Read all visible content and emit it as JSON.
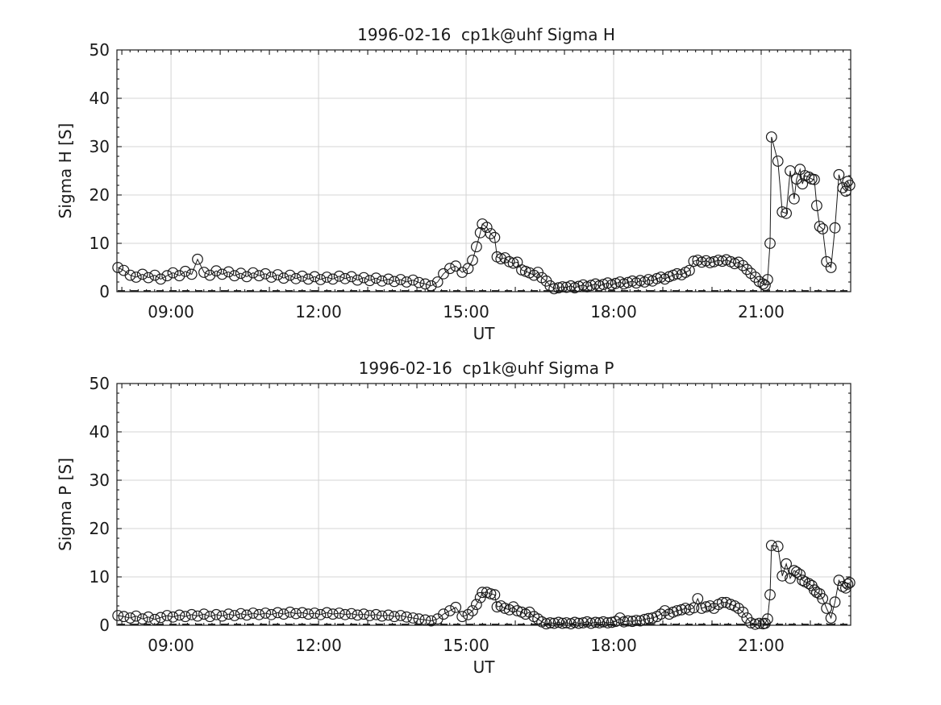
{
  "figure": {
    "background": "#ffffff"
  },
  "colors": {
    "axis": "#1a1a1a",
    "grid": "#d4d4d4",
    "line": "#1a1a1a",
    "marker": "#1a1a1a",
    "text": "#1a1a1a"
  },
  "chart_data": [
    {
      "id": "sigma-h",
      "type": "line",
      "title": "1996-02-16  cp1k@uhf Sigma H",
      "xlabel": "UT",
      "ylabel": "Sigma H [S]",
      "xlim": [
        7.9,
        22.82
      ],
      "ylim": [
        0,
        50
      ],
      "grid": true,
      "legend": "none",
      "marker": "circle",
      "baseline_dash_y": 0.2,
      "yticks": [
        0,
        10,
        20,
        30,
        40,
        50
      ],
      "xticks": [
        {
          "hour": 9,
          "label": "09:00"
        },
        {
          "hour": 12,
          "label": "12:00"
        },
        {
          "hour": 15,
          "label": "15:00"
        },
        {
          "hour": 18,
          "label": "18:00"
        },
        {
          "hour": 21,
          "label": "21:00"
        }
      ],
      "series": [
        {
          "name": "sigma_h",
          "x": [
            7.92,
            8.04,
            8.17,
            8.29,
            8.42,
            8.54,
            8.67,
            8.79,
            8.92,
            9.04,
            9.17,
            9.29,
            9.42,
            9.54,
            9.67,
            9.79,
            9.92,
            10.04,
            10.17,
            10.29,
            10.42,
            10.54,
            10.67,
            10.79,
            10.92,
            11.04,
            11.17,
            11.29,
            11.42,
            11.54,
            11.67,
            11.79,
            11.92,
            12.04,
            12.17,
            12.29,
            12.42,
            12.54,
            12.67,
            12.79,
            12.92,
            13.04,
            13.17,
            13.29,
            13.42,
            13.54,
            13.67,
            13.79,
            13.92,
            14.04,
            14.17,
            14.29,
            14.42,
            14.54,
            14.67,
            14.79,
            14.92,
            15.04,
            15.13,
            15.21,
            15.29,
            15.33,
            15.42,
            15.5,
            15.58,
            15.63,
            15.71,
            15.79,
            15.88,
            15.96,
            16.04,
            16.13,
            16.21,
            16.29,
            16.38,
            16.46,
            16.54,
            16.63,
            16.71,
            16.79,
            16.88,
            16.96,
            17.04,
            17.13,
            17.21,
            17.29,
            17.38,
            17.46,
            17.54,
            17.63,
            17.71,
            17.79,
            17.88,
            17.96,
            18.04,
            18.13,
            18.21,
            18.29,
            18.38,
            18.46,
            18.54,
            18.63,
            18.71,
            18.79,
            18.88,
            18.96,
            19.04,
            19.13,
            19.21,
            19.29,
            19.38,
            19.46,
            19.54,
            19.63,
            19.71,
            19.79,
            19.88,
            19.96,
            20.04,
            20.13,
            20.21,
            20.29,
            20.38,
            20.46,
            20.54,
            20.63,
            20.71,
            20.79,
            20.88,
            20.96,
            21.04,
            21.08,
            21.13,
            21.18,
            21.21,
            21.34,
            21.43,
            21.51,
            21.59,
            21.67,
            21.72,
            21.79,
            21.84,
            21.89,
            21.97,
            22.03,
            22.08,
            22.13,
            22.19,
            22.25,
            22.33,
            22.42,
            22.5,
            22.58,
            22.66,
            22.72,
            22.76,
            22.8
          ],
          "y": [
            5.0,
            4.4,
            3.4,
            3.0,
            3.6,
            2.9,
            3.4,
            2.6,
            3.3,
            3.9,
            3.3,
            4.2,
            3.6,
            6.7,
            4.0,
            3.4,
            4.3,
            3.6,
            4.1,
            3.3,
            3.8,
            3.1,
            3.9,
            3.3,
            3.7,
            3.0,
            3.5,
            2.8,
            3.4,
            2.7,
            3.2,
            2.6,
            3.1,
            2.5,
            3.0,
            2.6,
            3.2,
            2.7,
            3.1,
            2.4,
            2.9,
            2.3,
            2.8,
            2.2,
            2.6,
            2.1,
            2.5,
            2.0,
            2.4,
            1.9,
            1.6,
            1.2,
            2.0,
            3.7,
            4.8,
            5.3,
            4.0,
            4.8,
            6.5,
            9.3,
            12.2,
            14.0,
            13.3,
            12.0,
            11.2,
            7.2,
            6.8,
            7.0,
            6.2,
            5.9,
            6.1,
            4.5,
            4.2,
            3.9,
            3.4,
            4.0,
            2.9,
            2.2,
            1.2,
            0.6,
            0.8,
            1.0,
            0.9,
            1.2,
            0.8,
            1.1,
            1.4,
            1.0,
            1.3,
            1.6,
            1.2,
            1.5,
            1.8,
            1.4,
            1.7,
            2.0,
            1.6,
            1.9,
            2.2,
            1.8,
            2.3,
            2.0,
            2.5,
            2.2,
            2.7,
            3.0,
            2.6,
            3.1,
            3.4,
            3.7,
            3.5,
            4.0,
            4.4,
            6.3,
            6.5,
            6.1,
            6.4,
            6.0,
            6.2,
            6.5,
            6.3,
            6.6,
            6.2,
            5.8,
            6.1,
            5.4,
            4.6,
            3.8,
            3.0,
            2.1,
            1.6,
            1.3,
            2.5,
            10.0,
            32.0,
            27.0,
            16.5,
            16.2,
            25.0,
            19.2,
            23.3,
            25.3,
            22.3,
            24.0,
            23.7,
            23.3,
            23.2,
            17.8,
            13.5,
            13.0,
            6.2,
            5.0,
            13.2,
            24.2,
            21.5,
            20.8,
            22.8,
            22.0
          ]
        }
      ]
    },
    {
      "id": "sigma-p",
      "type": "line",
      "title": "1996-02-16  cp1k@uhf Sigma P",
      "xlabel": "UT",
      "ylabel": "Sigma P [S]",
      "xlim": [
        7.9,
        22.82
      ],
      "ylim": [
        0,
        50
      ],
      "grid": true,
      "legend": "none",
      "marker": "circle",
      "baseline_dash_y": 0.2,
      "yticks": [
        0,
        10,
        20,
        30,
        40,
        50
      ],
      "xticks": [
        {
          "hour": 9,
          "label": "09:00"
        },
        {
          "hour": 12,
          "label": "12:00"
        },
        {
          "hour": 15,
          "label": "15:00"
        },
        {
          "hour": 18,
          "label": "18:00"
        },
        {
          "hour": 21,
          "label": "21:00"
        }
      ],
      "series": [
        {
          "name": "sigma_p",
          "x": [
            7.92,
            8.04,
            8.17,
            8.29,
            8.42,
            8.54,
            8.67,
            8.79,
            8.92,
            9.04,
            9.17,
            9.29,
            9.42,
            9.54,
            9.67,
            9.79,
            9.92,
            10.04,
            10.17,
            10.29,
            10.42,
            10.54,
            10.67,
            10.79,
            10.92,
            11.04,
            11.17,
            11.29,
            11.42,
            11.54,
            11.67,
            11.79,
            11.92,
            12.04,
            12.17,
            12.29,
            12.42,
            12.54,
            12.67,
            12.79,
            12.92,
            13.04,
            13.17,
            13.29,
            13.42,
            13.54,
            13.67,
            13.79,
            13.92,
            14.04,
            14.17,
            14.29,
            14.42,
            14.54,
            14.67,
            14.79,
            14.92,
            15.04,
            15.13,
            15.21,
            15.29,
            15.33,
            15.42,
            15.5,
            15.58,
            15.63,
            15.71,
            15.79,
            15.88,
            15.96,
            16.04,
            16.13,
            16.21,
            16.29,
            16.38,
            16.46,
            16.54,
            16.63,
            16.71,
            16.79,
            16.88,
            16.96,
            17.04,
            17.13,
            17.21,
            17.29,
            17.38,
            17.46,
            17.54,
            17.63,
            17.71,
            17.79,
            17.88,
            17.96,
            18.04,
            18.13,
            18.21,
            18.29,
            18.38,
            18.46,
            18.54,
            18.63,
            18.71,
            18.79,
            18.88,
            18.96,
            19.04,
            19.13,
            19.21,
            19.29,
            19.38,
            19.46,
            19.54,
            19.63,
            19.71,
            19.79,
            19.88,
            19.96,
            20.04,
            20.13,
            20.21,
            20.29,
            20.38,
            20.46,
            20.54,
            20.63,
            20.71,
            20.79,
            20.88,
            20.96,
            21.04,
            21.08,
            21.13,
            21.18,
            21.21,
            21.34,
            21.43,
            21.51,
            21.59,
            21.67,
            21.72,
            21.79,
            21.84,
            21.89,
            21.97,
            22.03,
            22.08,
            22.13,
            22.19,
            22.25,
            22.33,
            22.42,
            22.5,
            22.58,
            22.66,
            22.72,
            22.76,
            22.8
          ],
          "y": [
            2.0,
            1.8,
            1.5,
            1.9,
            1.3,
            1.7,
            1.2,
            1.6,
            2.0,
            1.7,
            2.1,
            1.8,
            2.2,
            1.9,
            2.3,
            1.8,
            2.2,
            1.9,
            2.3,
            2.0,
            2.4,
            2.1,
            2.5,
            2.2,
            2.5,
            2.2,
            2.6,
            2.3,
            2.7,
            2.4,
            2.6,
            2.3,
            2.5,
            2.2,
            2.6,
            2.3,
            2.5,
            2.2,
            2.4,
            2.1,
            2.3,
            2.0,
            2.2,
            1.9,
            2.1,
            1.8,
            2.0,
            1.7,
            1.5,
            1.3,
            1.1,
            0.9,
            1.3,
            2.3,
            3.0,
            3.7,
            1.8,
            2.2,
            3.0,
            4.3,
            5.7,
            6.8,
            6.8,
            6.5,
            6.3,
            3.8,
            4.0,
            3.5,
            3.2,
            3.8,
            3.0,
            2.7,
            2.3,
            2.7,
            1.8,
            1.3,
            0.7,
            0.3,
            0.5,
            0.4,
            0.6,
            0.4,
            0.5,
            0.3,
            0.6,
            0.4,
            0.5,
            0.7,
            0.4,
            0.6,
            0.5,
            0.7,
            0.5,
            0.6,
            0.8,
            1.5,
            0.7,
            0.9,
            0.8,
            1.0,
            0.9,
            1.2,
            1.4,
            1.5,
            1.8,
            2.3,
            3.0,
            2.3,
            2.7,
            3.0,
            3.2,
            3.5,
            3.2,
            3.6,
            5.5,
            3.5,
            3.8,
            4.0,
            3.5,
            4.3,
            4.7,
            4.7,
            4.3,
            4.0,
            3.5,
            2.7,
            1.5,
            0.5,
            0.2,
            0.4,
            0.3,
            0.4,
            1.3,
            6.3,
            16.5,
            16.3,
            10.2,
            12.7,
            9.7,
            11.3,
            11.0,
            10.5,
            9.3,
            9.0,
            8.6,
            8.2,
            7.3,
            6.8,
            6.5,
            5.5,
            3.5,
            1.5,
            4.8,
            9.3,
            8.0,
            7.7,
            8.5,
            8.8
          ]
        }
      ]
    }
  ]
}
